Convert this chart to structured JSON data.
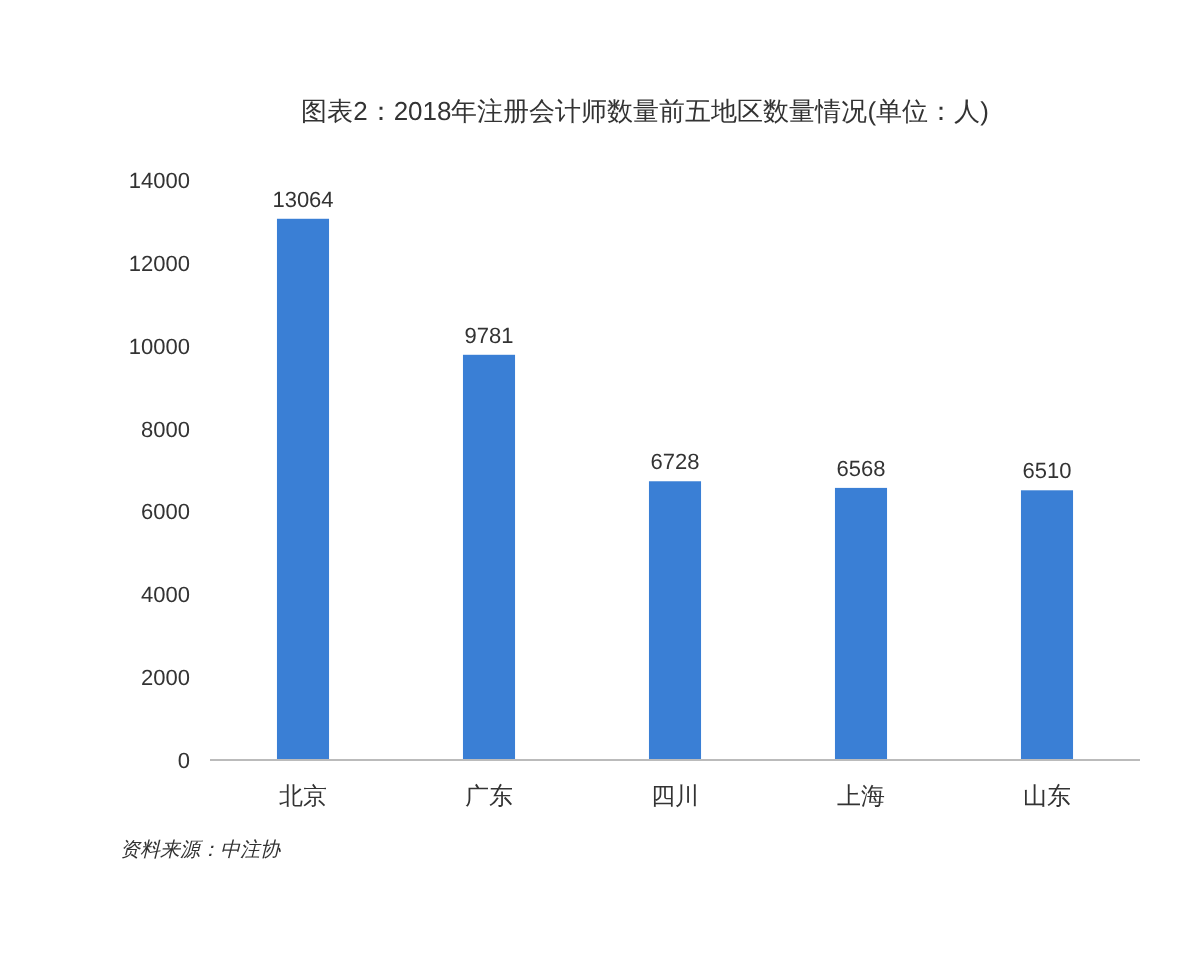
{
  "chart_data": {
    "type": "bar",
    "title": "图表2：2018年注册会计师数量前五地区数量情况(单位：人)",
    "categories": [
      "北京",
      "广东",
      "四川",
      "上海",
      "山东"
    ],
    "values": [
      13064,
      9781,
      6728,
      6568,
      6510
    ],
    "color": "#3a7fd5",
    "ylim": [
      0,
      14000
    ],
    "yticks": [
      0,
      2000,
      4000,
      6000,
      8000,
      10000,
      12000,
      14000
    ],
    "grid": false,
    "data_labels": true,
    "annotations": [
      "资料来源：中注协"
    ]
  }
}
